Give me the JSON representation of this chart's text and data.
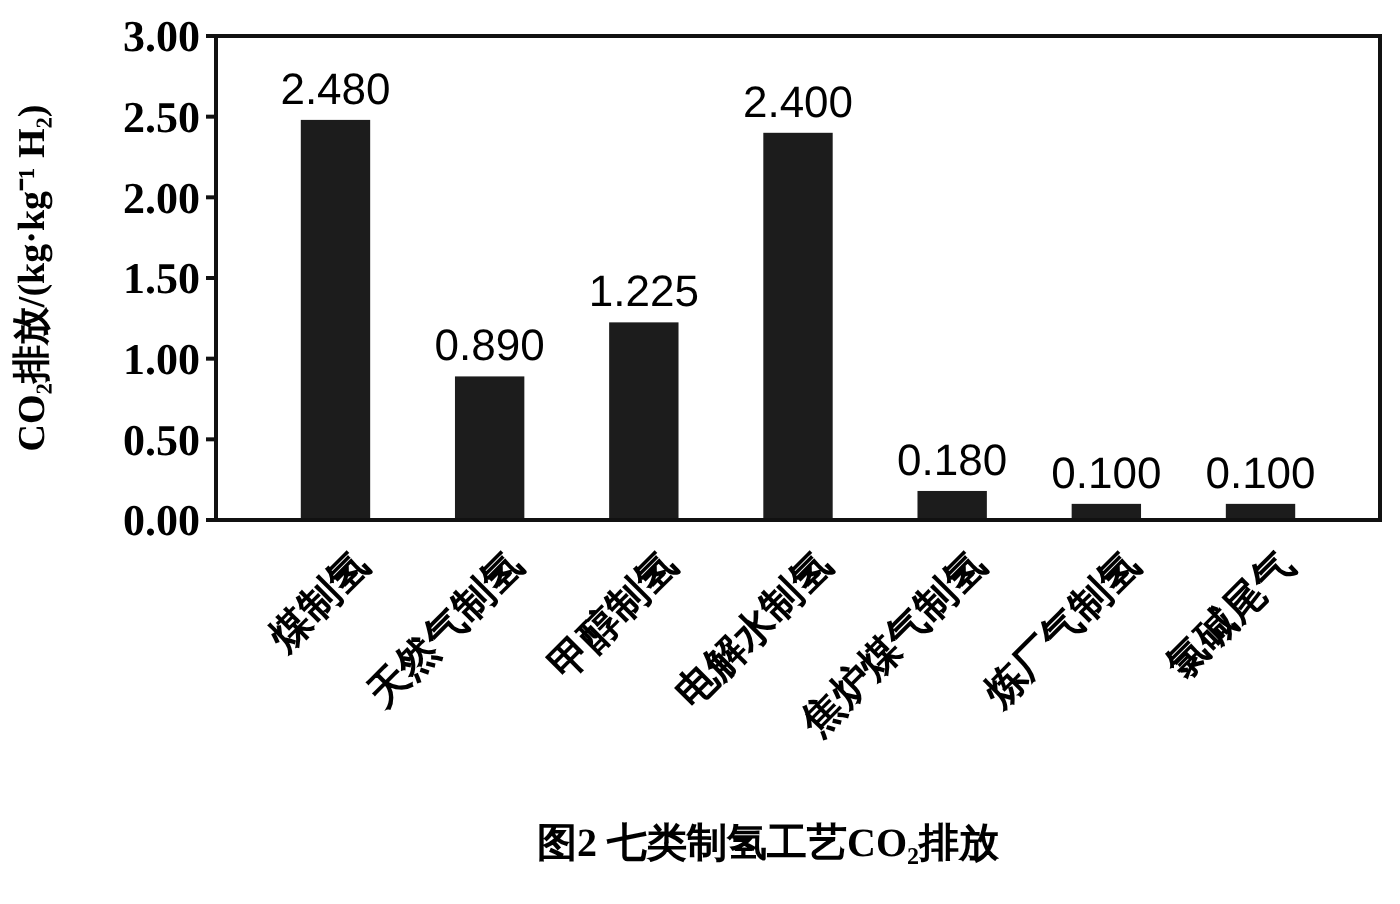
{
  "chart_data": {
    "type": "bar",
    "title": "图2 七类制氢工艺CO₂排放",
    "ylabel": "CO₂排放/(kg·kg⁻¹ H₂)",
    "categories": [
      "煤制氢",
      "天然气制氢",
      "甲醇制氢",
      "电解水制氢",
      "焦炉煤气制氢",
      "炼厂气制氢",
      "氯碱尾气"
    ],
    "values": [
      2.48,
      0.89,
      1.225,
      2.4,
      0.18,
      0.1,
      0.1
    ],
    "value_labels": [
      "2.480",
      "0.890",
      "1.225",
      "2.400",
      "0.180",
      "0.100",
      "0.100"
    ],
    "color": "#1c1c1c",
    "ylim": [
      0,
      3
    ],
    "yticks": [
      {
        "value": 0,
        "label": "0.00"
      },
      {
        "value": 0.5,
        "label": "0.50"
      },
      {
        "value": 1,
        "label": "1.00"
      },
      {
        "value": 1.5,
        "label": "1.50"
      },
      {
        "value": 2,
        "label": "2.00"
      },
      {
        "value": 2.5,
        "label": "2.50"
      },
      {
        "value": 3,
        "label": "3.00"
      }
    ],
    "grid": false
  }
}
